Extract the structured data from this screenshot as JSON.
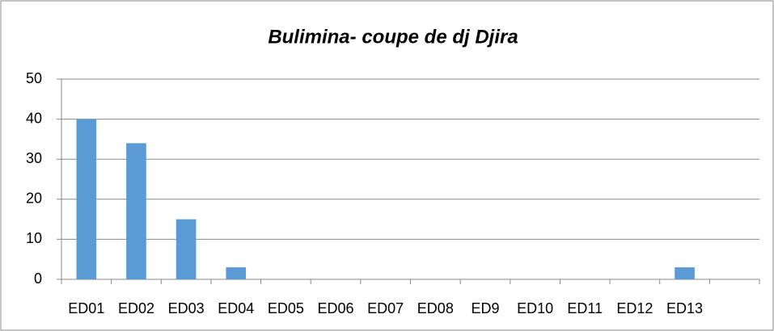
{
  "chart_data": {
    "type": "bar",
    "title": "Bulimina- coupe de dj Djira",
    "categories": [
      "ED01",
      "ED02",
      "ED03",
      "ED04",
      "ED05",
      "ED06",
      "ED07",
      "ED08",
      "ED9",
      "ED10",
      "ED11",
      "ED12",
      "ED13",
      null
    ],
    "values": [
      40,
      34,
      15,
      3,
      0,
      0,
      0,
      0,
      0,
      0,
      0,
      0,
      3,
      0
    ],
    "color": "#5b9bd5",
    "ylim": [
      0,
      50
    ],
    "yticks": [
      0,
      10,
      20,
      30,
      40,
      50
    ],
    "grid": true
  }
}
